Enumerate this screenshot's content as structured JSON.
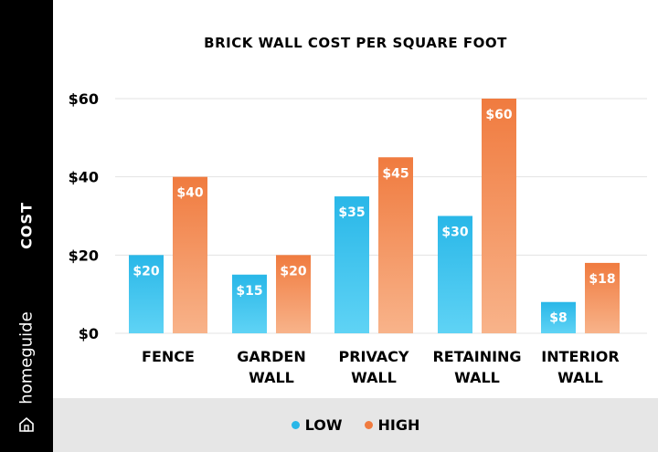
{
  "sidebar": {
    "ylabel": "COST",
    "brand": "homeguide",
    "brand_icon": "house-icon"
  },
  "legend": {
    "low_label": "LOW",
    "high_label": "HIGH"
  },
  "colors": {
    "low_top": "#29b7e8",
    "low_bottom": "#5fd3f5",
    "high_top": "#f07b3f",
    "high_bottom": "#f8b38a"
  },
  "chart_data": {
    "type": "bar",
    "title": "BRICK WALL COST PER SQUARE FOOT",
    "ylabel": "COST",
    "categories": [
      [
        "FENCE"
      ],
      [
        "GARDEN",
        "WALL"
      ],
      [
        "PRIVACY",
        "WALL"
      ],
      [
        "RETAINING",
        "WALL"
      ],
      [
        "INTERIOR",
        "WALL"
      ]
    ],
    "series": [
      {
        "name": "LOW",
        "values": [
          20,
          15,
          35,
          30,
          8
        ],
        "labels": [
          "$20",
          "$15",
          "$35",
          "$30",
          "$8"
        ]
      },
      {
        "name": "HIGH",
        "values": [
          40,
          20,
          45,
          60,
          18
        ],
        "labels": [
          "$40",
          "$20",
          "$45",
          "$60",
          "$18"
        ]
      }
    ],
    "ylim": [
      0,
      60
    ],
    "yticks": [
      0,
      20,
      40,
      60
    ],
    "ytick_labels": [
      "$0",
      "$20",
      "$40",
      "$60"
    ],
    "grid": true,
    "legend_position": "bottom"
  }
}
